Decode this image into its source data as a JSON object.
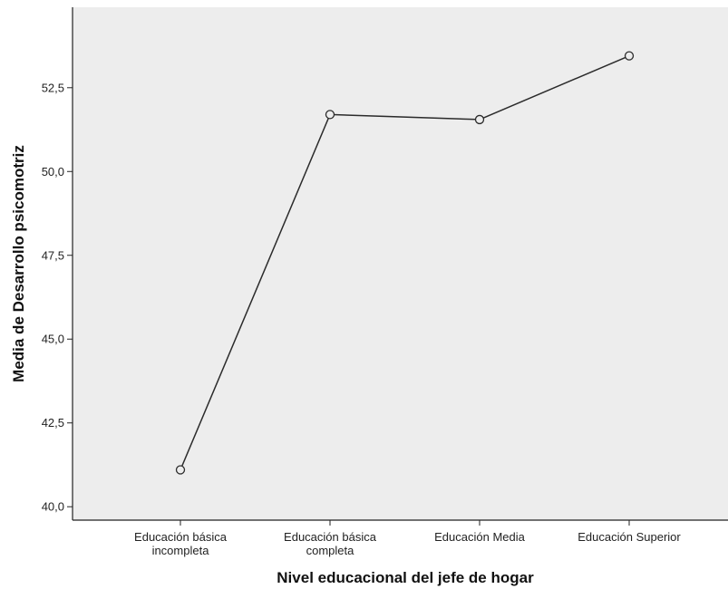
{
  "chart_data": {
    "type": "line",
    "title": "",
    "xlabel": "Nivel educacional del jefe de hogar",
    "ylabel": "Media de Desarrollo psicomotriz",
    "categories": [
      [
        "Educación básica",
        "incompleta"
      ],
      [
        "Educación básica",
        "completa"
      ],
      [
        "Educación Media"
      ],
      [
        "Educación Superior"
      ]
    ],
    "series": [
      {
        "values": [
          41.1,
          51.7,
          51.55,
          53.45
        ]
      }
    ],
    "ylim": [
      39.6,
      54.9
    ],
    "yticks": [
      40.0,
      42.5,
      45.0,
      47.5,
      50.0,
      52.5
    ],
    "ytick_labels": [
      "40,0",
      "42,5",
      "45,0",
      "47,5",
      "50,0",
      "52,5"
    ],
    "grid": false,
    "legend": "none",
    "colors": {
      "plot_background": "#ededed",
      "line": "#2b2b2b",
      "axis": "#222222"
    },
    "marker": "open-circle"
  }
}
